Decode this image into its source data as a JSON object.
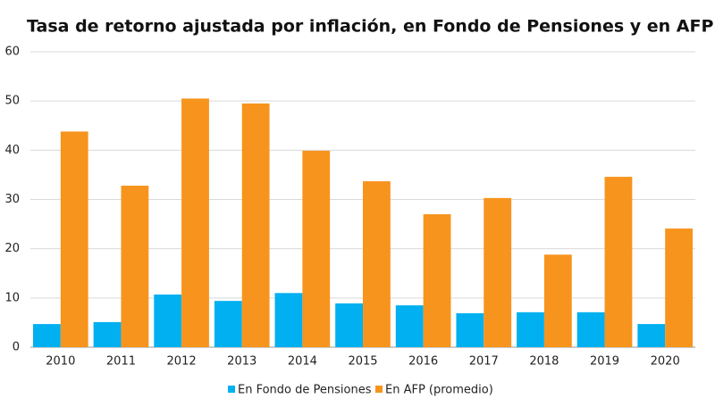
{
  "chart_data": {
    "type": "bar",
    "title": "Tasa de retorno ajustada por inflación, en Fondo de Pensiones y en AFP",
    "categories": [
      "2010",
      "2011",
      "2012",
      "2013",
      "2014",
      "2015",
      "2016",
      "2017",
      "2018",
      "2019",
      "2020"
    ],
    "series": [
      {
        "name": "En Fondo de Pensiones",
        "color": "#00b0f0",
        "values": [
          4.7,
          5.1,
          10.7,
          9.4,
          11.0,
          8.9,
          8.5,
          6.9,
          7.1,
          7.1,
          4.7
        ]
      },
      {
        "name": "En AFP (promedio)",
        "color": "#f7941d",
        "values": [
          43.8,
          32.8,
          50.5,
          49.5,
          39.9,
          33.7,
          27.0,
          30.3,
          18.8,
          34.6,
          24.1
        ]
      }
    ],
    "ylim": [
      0,
      60
    ],
    "yticks": [
      0,
      10,
      20,
      30,
      40,
      50,
      60
    ],
    "grid": true,
    "legend": "bottom"
  }
}
